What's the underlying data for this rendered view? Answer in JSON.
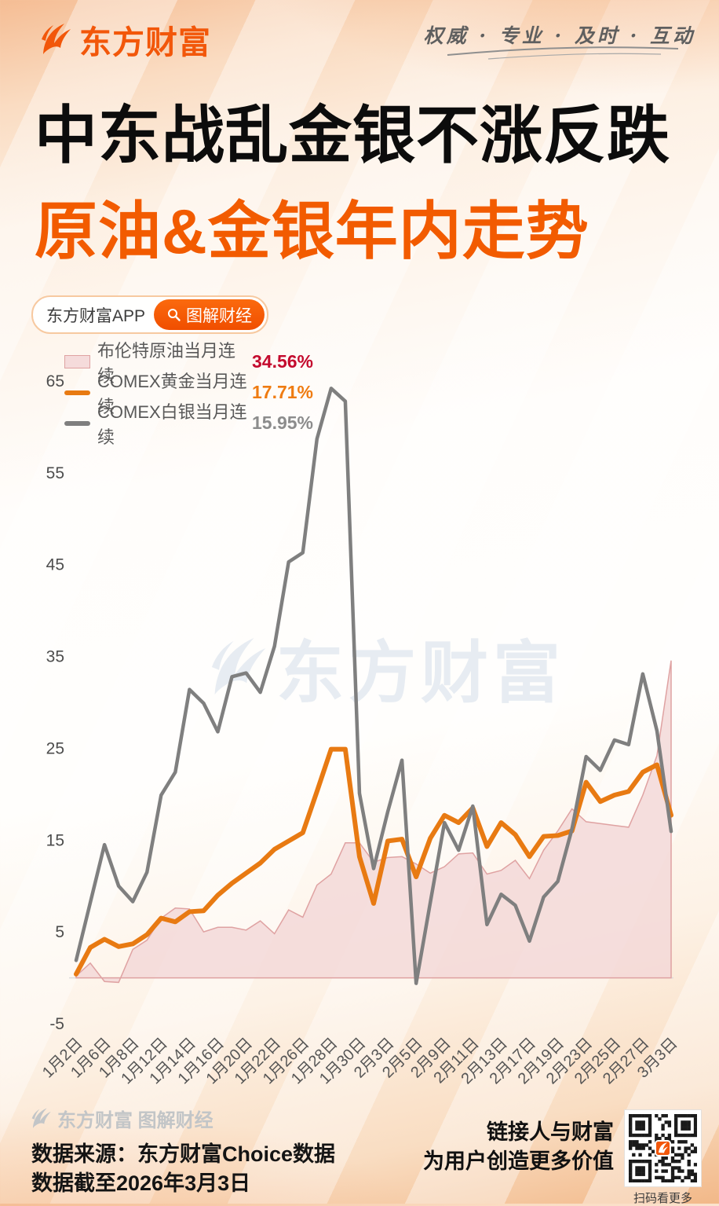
{
  "header": {
    "brand": "东方财富",
    "slogan": "权威 · 专业 · 及时 · 互动"
  },
  "title": {
    "line1": "中东战乱金银不涨反跌",
    "line2": "原油&金银年内走势"
  },
  "badges": {
    "app_label": "东方财富APP",
    "channel_label": "图解财经"
  },
  "watermark": {
    "chart": "东方财富",
    "footer": "东方财富 图解财经"
  },
  "colors": {
    "brand_orange": "#f2570a",
    "subtitle_orange": "#f25b00",
    "oil_value_red": "#c40b2e",
    "gold_orange": "#e87a12",
    "silver_gray": "#7f7f7f",
    "oil_fill_pink": "#f2d7d7",
    "oil_border_pink": "#dfa2a2"
  },
  "chart_data": {
    "type": "line",
    "title": "原油&金银年内走势",
    "categories": [
      "1月2日",
      "1月6日",
      "1月8日",
      "1月12日",
      "1月14日",
      "1月16日",
      "1月20日",
      "1月22日",
      "1月26日",
      "1月28日",
      "1月30日",
      "2月3日",
      "2月5日",
      "2月9日",
      "2月11日",
      "2月13日",
      "2月17日",
      "2月19日",
      "2月23日",
      "2月25日",
      "2月27日",
      "3月3日"
    ],
    "label_every": 2,
    "unit": "%",
    "ylim": [
      -5,
      65
    ],
    "y_ticks": [
      65,
      55,
      45,
      35,
      25,
      15,
      5,
      -5
    ],
    "grid": false,
    "zero_line": true,
    "legend_position": "top-left",
    "series": [
      {
        "name": "布伦特原油当月连续",
        "display_value": "34.56%",
        "type": "area",
        "color": "#dfa2a2",
        "fill": "#f2d7d7",
        "value_color": "#c40b2e",
        "width": 1.5,
        "values": [
          0.2,
          1.6,
          -0.4,
          -0.5,
          3.1,
          4.1,
          6.5,
          7.6,
          7.5,
          5.0,
          5.5,
          5.5,
          5.2,
          6.2,
          4.8,
          7.4,
          6.6,
          10.1,
          11.3,
          14.7,
          14.7,
          12.6,
          13.1,
          13.2,
          12.4,
          11.4,
          12.1,
          13.5,
          13.6,
          11.3,
          11.7,
          12.8,
          10.8,
          13.9,
          16.0,
          18.4,
          17.0,
          16.8,
          16.6,
          16.4,
          19.9,
          24.2,
          34.56
        ]
      },
      {
        "name": "COMEX黄金当月连续",
        "display_value": "17.71%",
        "type": "line",
        "color": "#e87a12",
        "value_color": "#ef7c12",
        "width": 6,
        "values": [
          0.4,
          3.3,
          4.2,
          3.4,
          3.7,
          4.7,
          6.5,
          6.1,
          7.2,
          7.3,
          9.0,
          10.3,
          11.4,
          12.5,
          14.0,
          14.9,
          15.8,
          20.3,
          24.9,
          24.9,
          13.2,
          8.1,
          14.9,
          15.1,
          11.0,
          15.2,
          17.7,
          16.9,
          18.5,
          14.3,
          16.9,
          15.6,
          13.2,
          15.4,
          15.5,
          16.0,
          21.3,
          19.2,
          19.9,
          20.3,
          22.4,
          23.2,
          17.71
        ]
      },
      {
        "name": "COMEX白银当月连续",
        "display_value": "15.95%",
        "type": "line",
        "color": "#7f7f7f",
        "value_color": "#8c8c8c",
        "width": 4.5,
        "values": [
          1.9,
          8.2,
          14.5,
          10.0,
          8.3,
          11.5,
          19.9,
          22.4,
          31.4,
          29.9,
          26.8,
          32.8,
          33.2,
          31.1,
          36.1,
          45.3,
          46.3,
          58.7,
          64.2,
          62.8,
          20.1,
          11.9,
          18.1,
          23.7,
          -0.6,
          8.2,
          16.9,
          13.9,
          18.7,
          5.8,
          9.1,
          7.9,
          4.0,
          8.8,
          10.5,
          16.2,
          24.1,
          22.6,
          25.9,
          25.4,
          33.1,
          26.9,
          15.95
        ]
      }
    ]
  },
  "footer": {
    "source_line1": "数据来源：东方财富Choice数据",
    "source_line2": "数据截至2026年3月3日",
    "slogan_line1": "链接人与财富",
    "slogan_line2": "为用户创造更多价值",
    "qr_caption": "扫码看更多"
  }
}
